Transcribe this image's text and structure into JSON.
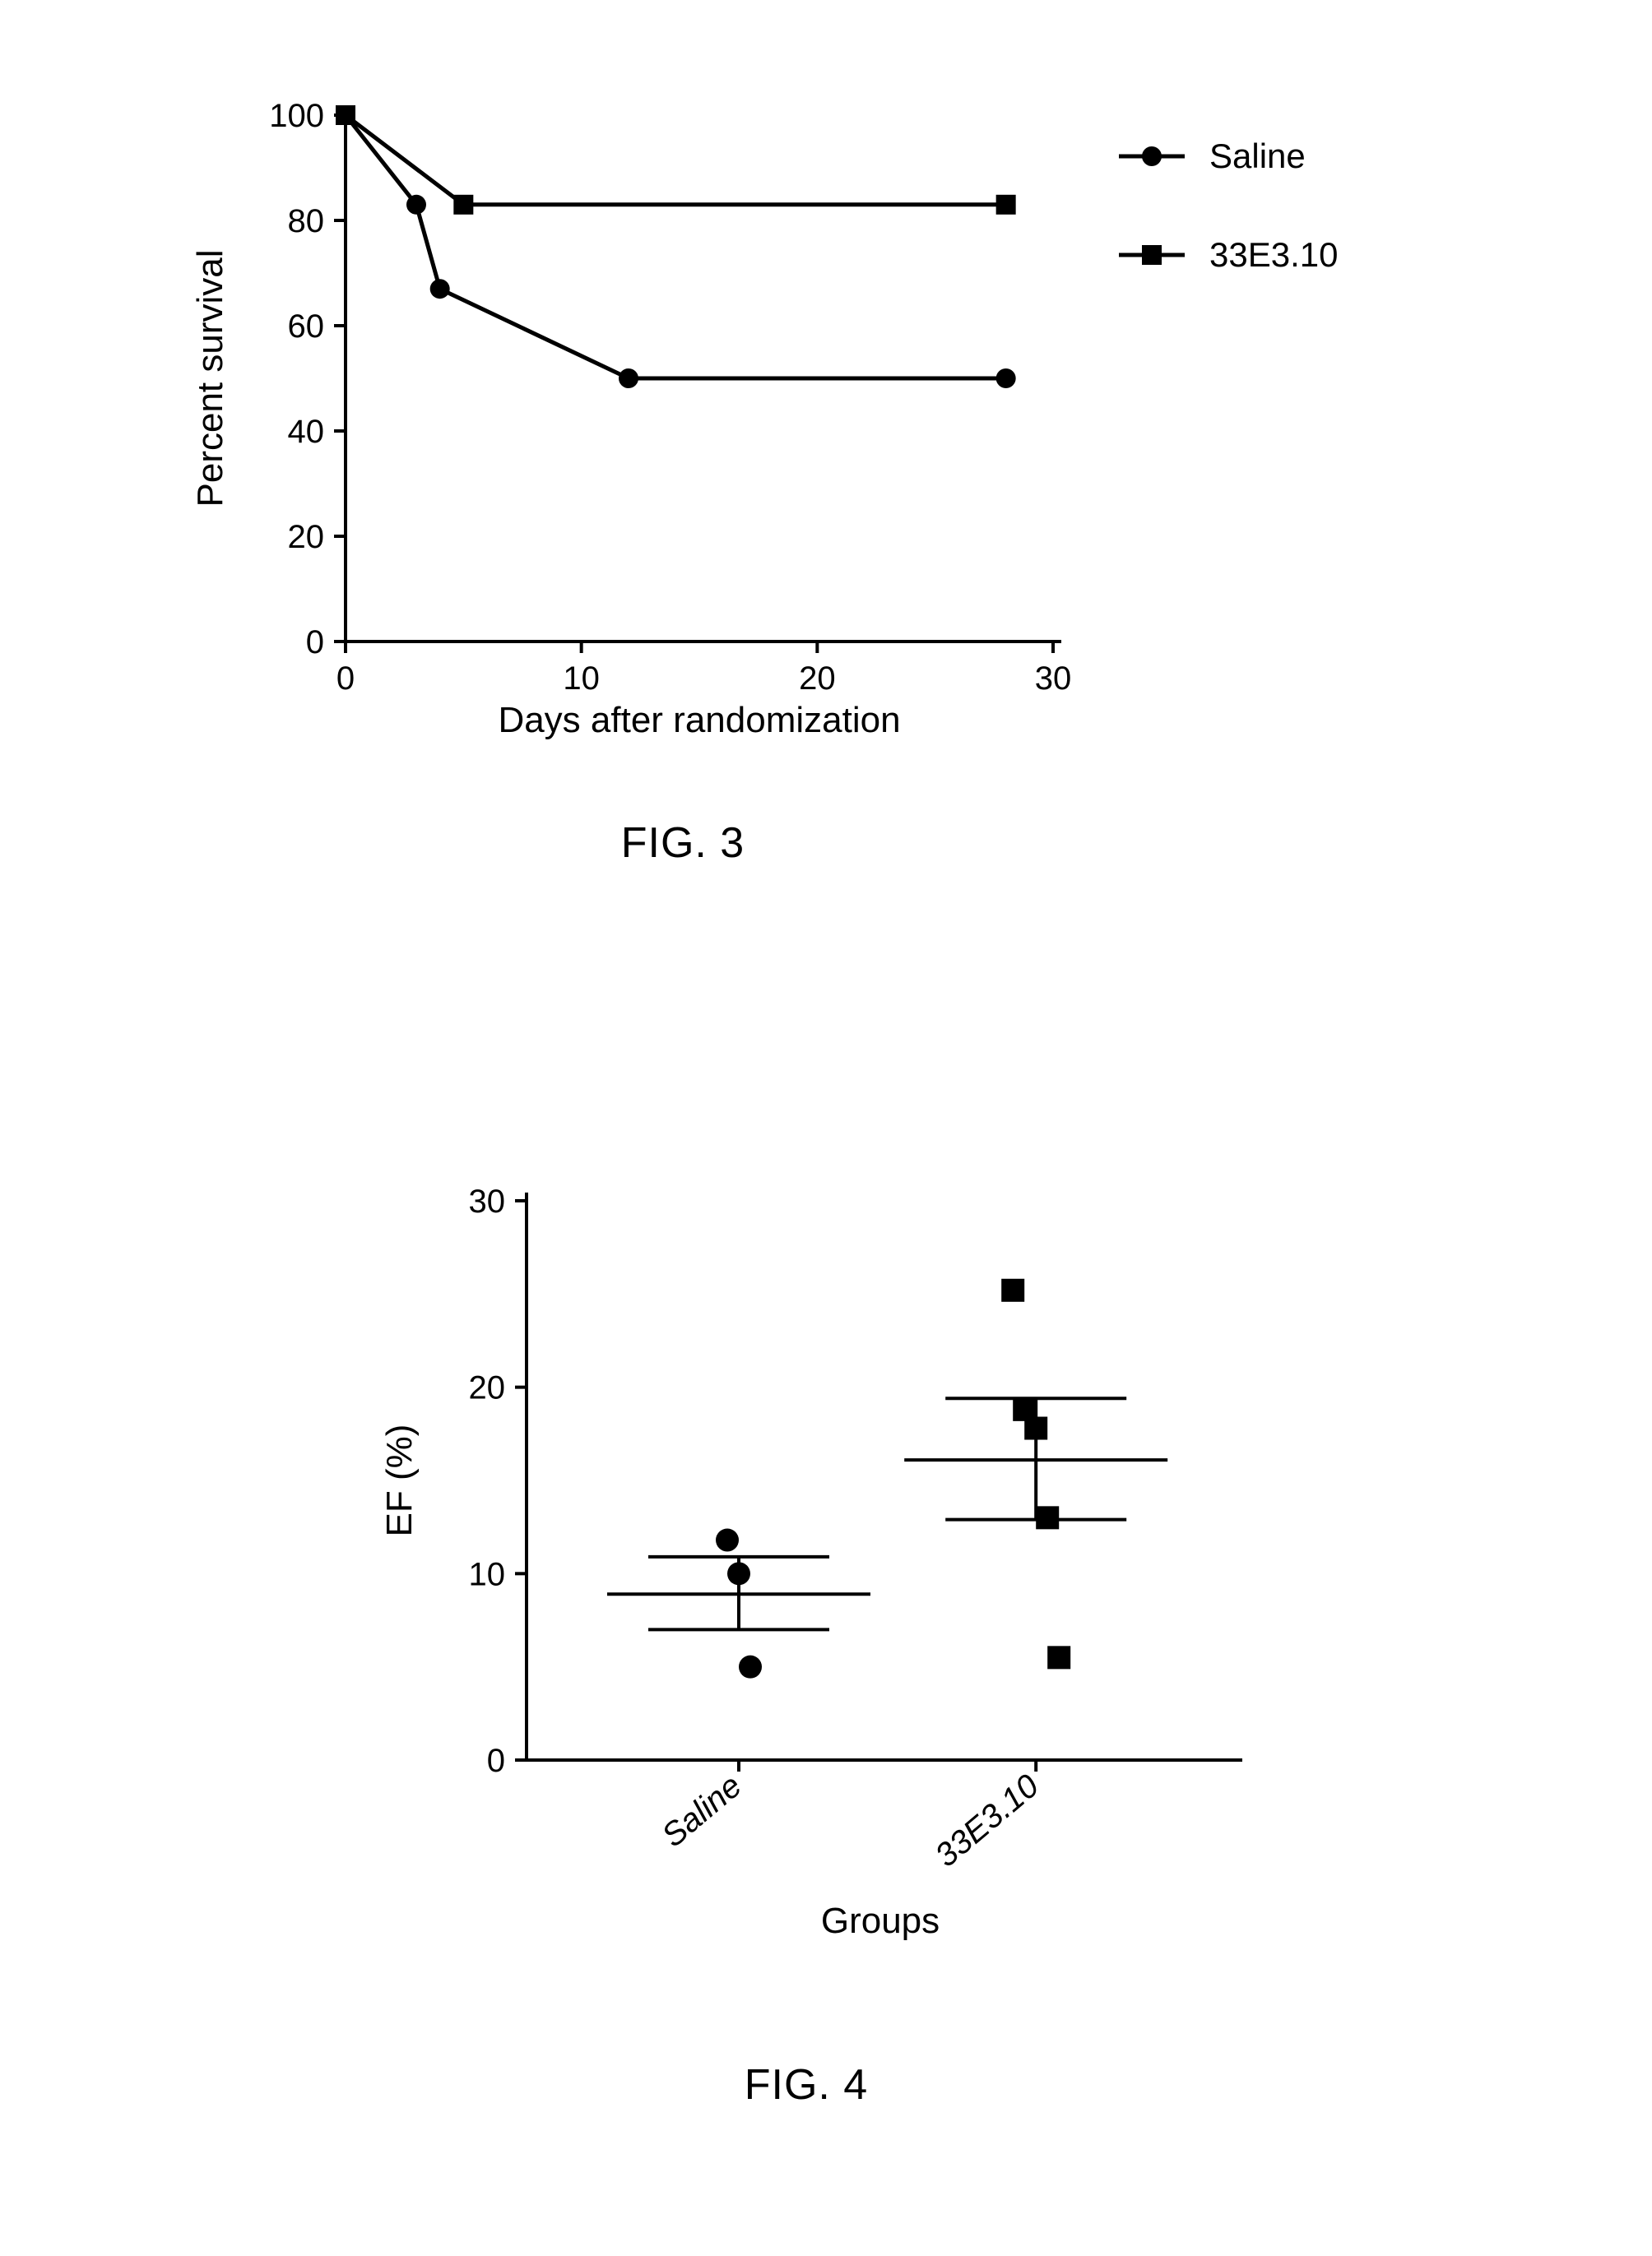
{
  "figure3": {
    "caption": "FIG. 3",
    "type": "line",
    "xlabel": "Days after randomization",
    "ylabel": "Percent survival",
    "label_fontsize": 44,
    "tick_fontsize": 40,
    "xlim": [
      0,
      30
    ],
    "ylim": [
      0,
      100
    ],
    "xticks": [
      0,
      10,
      20,
      30
    ],
    "yticks": [
      0,
      20,
      40,
      60,
      80,
      100
    ],
    "line_width": 5,
    "axis_width": 4,
    "tick_length": 14,
    "marker_size": 12,
    "background_color": "#ffffff",
    "axis_color": "#000000",
    "series": [
      {
        "name": "Saline",
        "marker": "circle",
        "color": "#000000",
        "x": [
          0,
          3,
          4,
          12,
          28
        ],
        "y": [
          100,
          83,
          67,
          50,
          50
        ]
      },
      {
        "name": "33E3.10",
        "marker": "square",
        "color": "#000000",
        "x": [
          0,
          5,
          28
        ],
        "y": [
          100,
          83,
          83
        ]
      }
    ],
    "legend": {
      "position": "right",
      "fontsize": 42
    }
  },
  "figure4": {
    "caption": "FIG. 4",
    "type": "scatter",
    "xlabel": "Groups",
    "ylabel": "EF  (%)",
    "label_fontsize": 44,
    "tick_fontsize": 40,
    "ylim": [
      0,
      30
    ],
    "yticks": [
      0,
      10,
      20,
      30
    ],
    "xcategories": [
      "Saline",
      "33E3.10"
    ],
    "line_width": 4,
    "axis_width": 4,
    "tick_length": 14,
    "marker_size": 14,
    "error_cap_width": 220,
    "mean_cap_width": 320,
    "background_color": "#ffffff",
    "axis_color": "#000000",
    "groups": [
      {
        "name": "Saline",
        "marker": "circle",
        "color": "#000000",
        "values": [
          11.8,
          10.0,
          5.0
        ],
        "mean": 8.9,
        "sem_upper": 10.9,
        "sem_lower": 7.0
      },
      {
        "name": "33E3.10",
        "marker": "square",
        "color": "#000000",
        "values": [
          25.2,
          18.8,
          17.8,
          13.0,
          5.5
        ],
        "mean": 16.1,
        "sem_upper": 19.4,
        "sem_lower": 12.9
      }
    ]
  }
}
